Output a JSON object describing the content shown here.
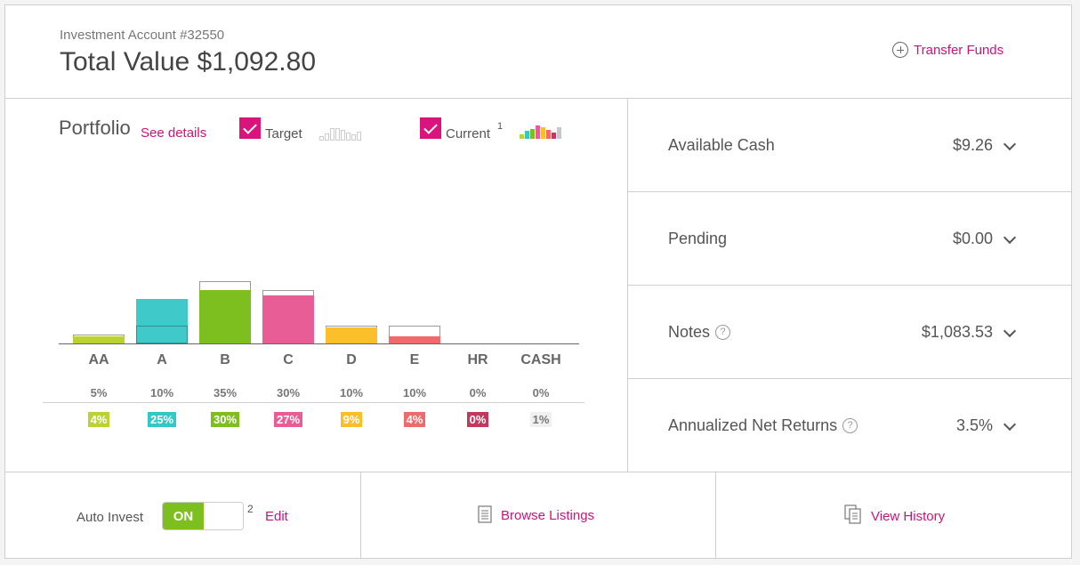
{
  "header": {
    "account_label": "Investment Account #32550",
    "total_label": "Total Value $1,092.80",
    "transfer_label": "Transfer Funds"
  },
  "portfolio": {
    "title": "Portfolio",
    "see_details": "See details",
    "target_label": "Target",
    "current_label": "Current",
    "current_sup": "1"
  },
  "chart_data": {
    "type": "bar",
    "categories": [
      "AA",
      "A",
      "B",
      "C",
      "D",
      "E",
      "HR",
      "CASH"
    ],
    "series": [
      {
        "name": "Target",
        "values": [
          5,
          10,
          35,
          30,
          10,
          10,
          0,
          0
        ]
      },
      {
        "name": "Current",
        "values": [
          4,
          25,
          30,
          27,
          9,
          4,
          0,
          1
        ]
      }
    ],
    "target_labels": [
      "5%",
      "10%",
      "35%",
      "30%",
      "10%",
      "10%",
      "0%",
      "0%"
    ],
    "current_labels": [
      "4%",
      "25%",
      "30%",
      "27%",
      "9%",
      "4%",
      "0%",
      "1%"
    ],
    "colors": [
      "#bcd232",
      "#35c6c6",
      "#7cbf1e",
      "#e85d95",
      "#fbbf2b",
      "#ef6b6b",
      "#c0395f",
      "#e8e8e8"
    ],
    "ylim": [
      0,
      35
    ]
  },
  "summary": {
    "available_cash": {
      "label": "Available Cash",
      "value": "$9.26"
    },
    "pending": {
      "label": "Pending",
      "value": "$0.00"
    },
    "notes": {
      "label": "Notes",
      "value": "$1,083.53"
    },
    "returns": {
      "label": "Annualized Net Returns",
      "value": "3.5%"
    }
  },
  "footer": {
    "auto_invest_label": "Auto Invest",
    "toggle_on": "ON",
    "auto_sup": "2",
    "edit_label": "Edit",
    "browse_label": "Browse Listings",
    "history_label": "View History"
  }
}
